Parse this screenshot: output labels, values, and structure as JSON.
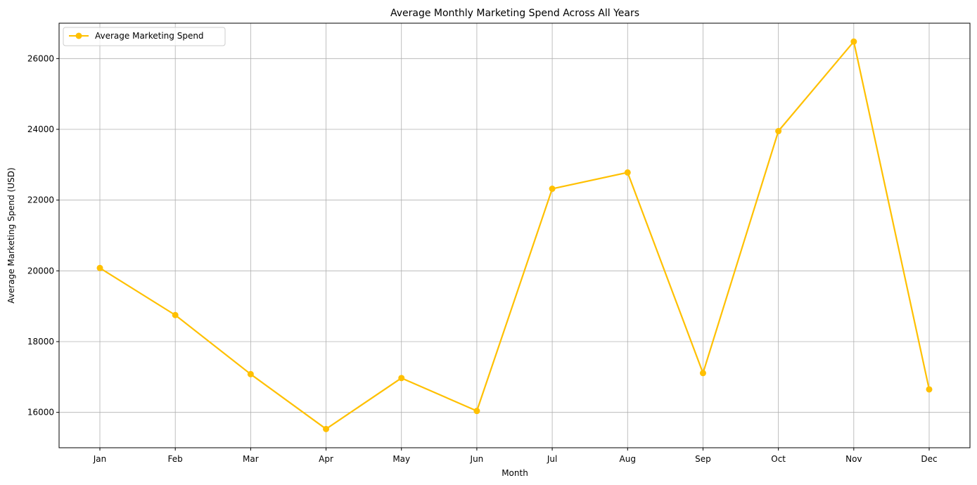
{
  "chart_data": {
    "type": "line",
    "title": "Average Monthly Marketing Spend Across All Years",
    "xlabel": "Month",
    "ylabel": "Average Marketing Spend (USD)",
    "categories": [
      "Jan",
      "Feb",
      "Mar",
      "Apr",
      "May",
      "Jun",
      "Jul",
      "Aug",
      "Sep",
      "Oct",
      "Nov",
      "Dec"
    ],
    "series": [
      {
        "name": "Average Marketing Spend",
        "values": [
          20080,
          18750,
          17080,
          15530,
          16970,
          16040,
          22320,
          22780,
          17110,
          23950,
          26480,
          16650
        ],
        "color": "#FFC000"
      }
    ],
    "ylim": [
      15000,
      27000
    ],
    "yticks": [
      16000,
      18000,
      20000,
      22000,
      24000,
      26000
    ],
    "grid": true,
    "legend": "top-left"
  }
}
